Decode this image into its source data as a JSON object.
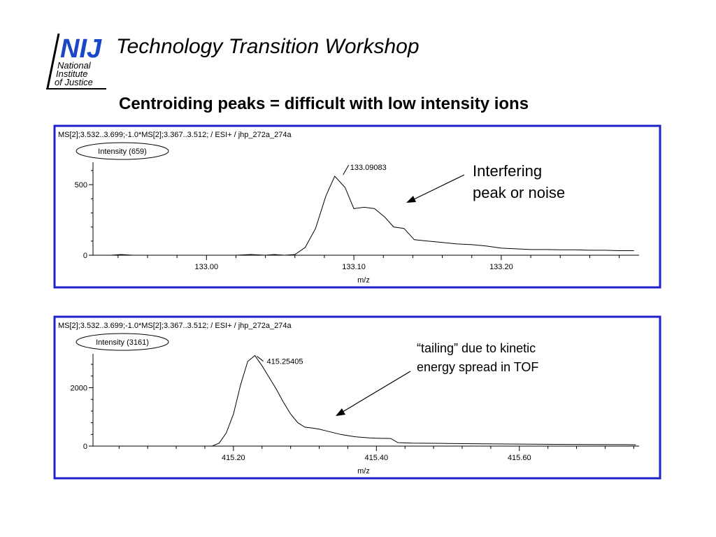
{
  "logo": {
    "letters": "NIJ",
    "line1": "National",
    "line2": "Institute",
    "line3": "of Justice"
  },
  "header": {
    "title": "Technology Transition Workshop"
  },
  "slide_title": "Centroiding peaks = difficult with low intensity ions",
  "colors": {
    "panel_border": "#1f1fcc",
    "logo_blue": "#1a46c8",
    "trace": "#000000"
  },
  "annotations": {
    "a1_line1": "Interfering",
    "a1_line2": "peak or noise",
    "a2_line1": "“tailing” due to kinetic",
    "a2_line2": "energy spread in TOF"
  },
  "chart_data": [
    {
      "type": "line",
      "header": "MS[2];3.532..3.699;-1.0*MS[2];3.367..3.512; / ESI+ / jhp_272a_274a",
      "intensity_label": "Intensity (659)",
      "xlabel": "m/z",
      "xlim": [
        132.923,
        133.2935
      ],
      "ylim": [
        0,
        659
      ],
      "xticks": [
        133.0,
        133.1,
        133.2
      ],
      "xtick_labels": [
        "133.00",
        "133.10",
        "133.20"
      ],
      "yticks": [
        0,
        500
      ],
      "ytick_labels": [
        "0",
        "500"
      ],
      "peak_label": "133.09083",
      "peak_label_x": 133.0908,
      "series": [
        {
          "x": [
            132.926,
            132.935,
            132.942,
            132.95,
            132.96,
            132.97,
            132.98,
            132.99,
            133.0,
            133.01,
            133.02,
            133.03,
            133.04,
            133.046,
            133.053,
            133.06,
            133.067,
            133.074,
            133.081,
            133.087,
            133.094,
            133.1,
            133.107,
            133.114,
            133.121,
            133.127,
            133.134,
            133.141,
            133.15,
            133.16,
            133.17,
            133.18,
            133.19,
            133.2,
            133.21,
            133.22,
            133.23,
            133.24,
            133.25,
            133.26,
            133.27,
            133.28,
            133.29
          ],
          "y": [
            0,
            0,
            5,
            0,
            0,
            0,
            0,
            0,
            0,
            0,
            0,
            5,
            0,
            5,
            0,
            5,
            55,
            190,
            420,
            560,
            480,
            330,
            340,
            330,
            270,
            200,
            190,
            110,
            100,
            90,
            80,
            75,
            65,
            50,
            45,
            40,
            40,
            38,
            38,
            35,
            35,
            32,
            32
          ]
        }
      ]
    },
    {
      "type": "line",
      "header": "MS[2];3.532..3.699;-1.0*MS[2];3.367..3.512; / ESI+ / jhp_272a_274a",
      "intensity_label": "Intensity (3161)",
      "xlabel": "m/z",
      "xlim": [
        415.0035,
        415.7675
      ],
      "ylim": [
        0,
        3161
      ],
      "xticks": [
        415.2,
        415.4,
        415.6
      ],
      "xtick_labels": [
        "415.20",
        "415.40",
        "415.60"
      ],
      "yticks": [
        0,
        2000
      ],
      "ytick_labels": [
        "0",
        "2000"
      ],
      "peak_label": "415.25405",
      "peak_label_x": 415.254,
      "series": [
        {
          "x": [
            415.006,
            415.05,
            415.1,
            415.15,
            415.17,
            415.18,
            415.19,
            415.2,
            415.21,
            415.22,
            415.23,
            415.24,
            415.25,
            415.26,
            415.27,
            415.28,
            415.29,
            415.3,
            415.31,
            415.32,
            415.33,
            415.34,
            415.35,
            415.36,
            415.37,
            415.38,
            415.39,
            415.4,
            415.42,
            415.43,
            415.44,
            415.45,
            415.5,
            415.55,
            415.6,
            415.65,
            415.7,
            415.75,
            415.763
          ],
          "y": [
            0,
            0,
            0,
            0,
            0,
            100,
            450,
            1100,
            2100,
            2900,
            3100,
            2750,
            2350,
            1950,
            1500,
            1100,
            800,
            650,
            620,
            580,
            520,
            460,
            400,
            360,
            320,
            300,
            280,
            270,
            260,
            120,
            110,
            100,
            90,
            80,
            70,
            60,
            55,
            50,
            45
          ]
        }
      ]
    }
  ]
}
